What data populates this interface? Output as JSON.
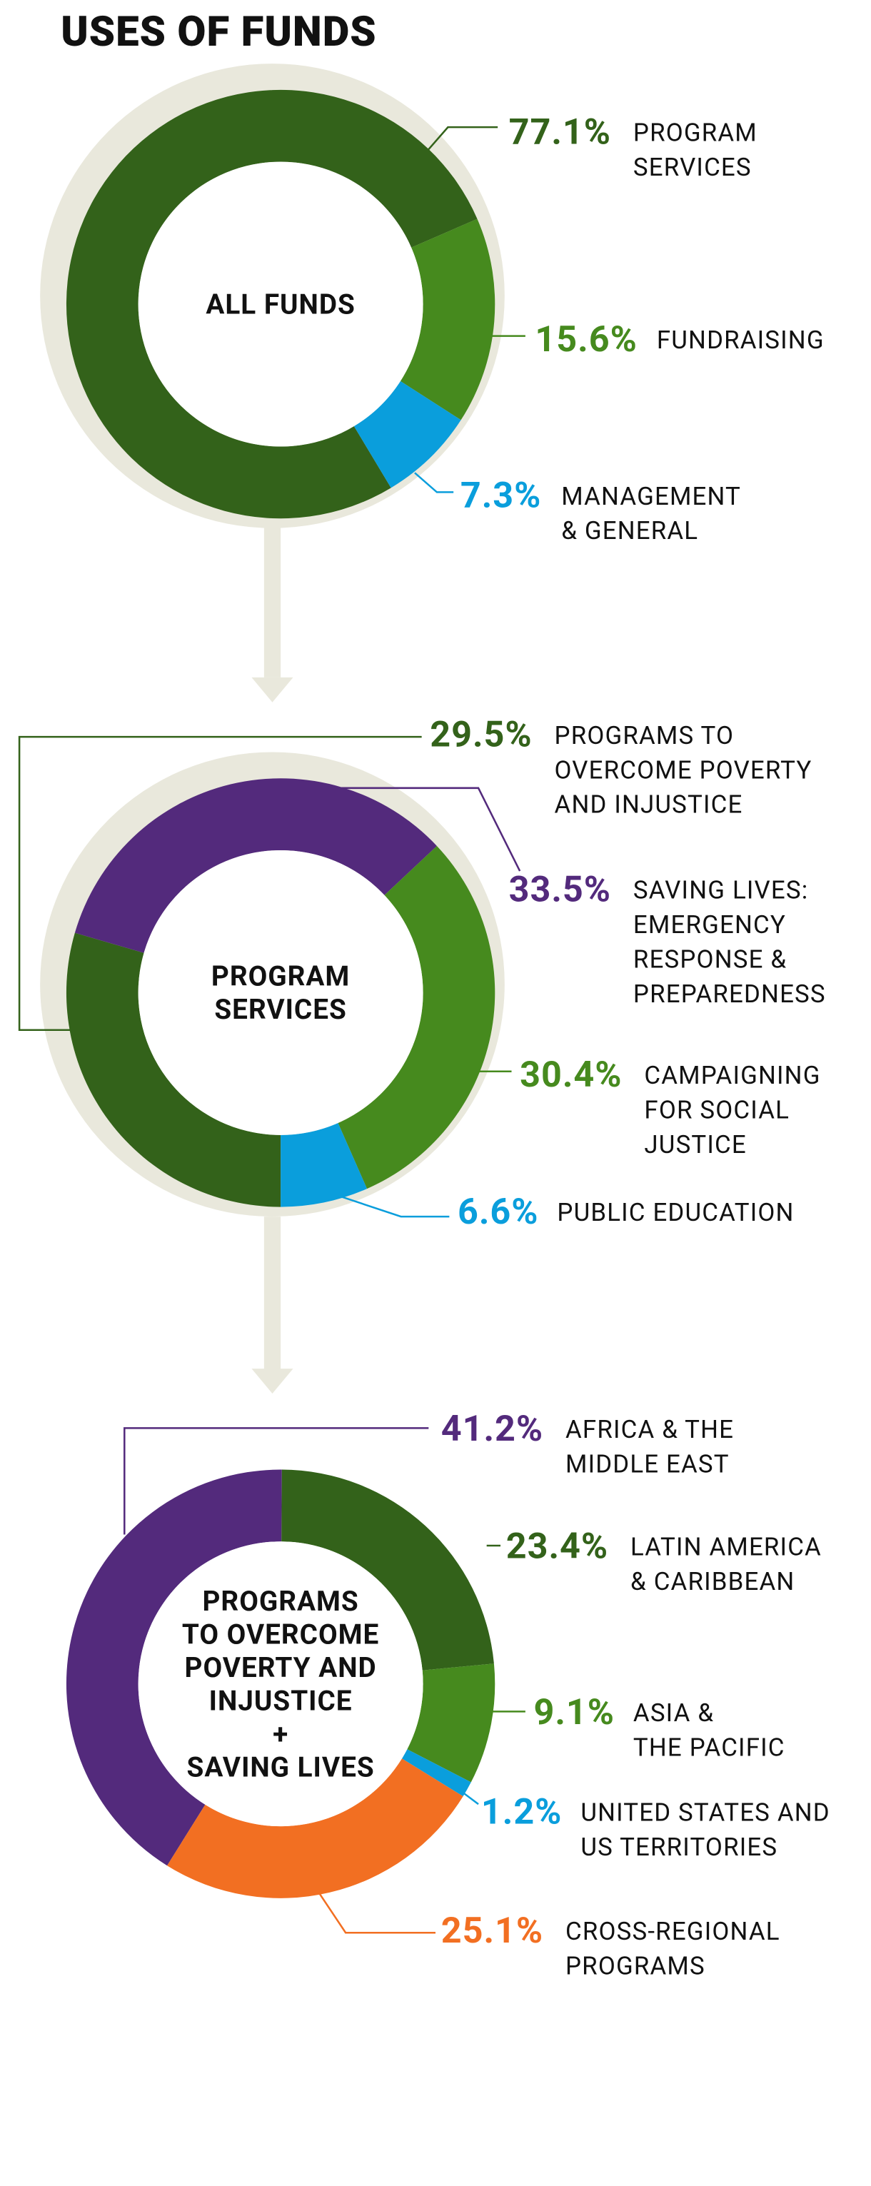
{
  "title": "USES OF FUNDS",
  "chart_data": [
    {
      "type": "donut",
      "title": "ALL FUNDS",
      "categories": [
        "PROGRAM\nSERVICES",
        "FUNDRAISING",
        "MANAGEMENT\n& GENERAL"
      ],
      "values": [
        77.1,
        15.6,
        7.3
      ],
      "value_labels": [
        "77.1%",
        "15.6%",
        "7.3%"
      ],
      "colors": [
        "#33621a",
        "#468a1e",
        "#0a9edc"
      ]
    },
    {
      "type": "donut",
      "title": "PROGRAM\nSERVICES",
      "categories": [
        "PROGRAMS TO\nOVERCOME POVERTY\nAND INJUSTICE",
        "SAVING LIVES:\nEMERGENCY\nRESPONSE &\nPREPAREDNESS",
        "CAMPAIGNING\nFOR SOCIAL\nJUSTICE",
        "PUBLIC EDUCATION"
      ],
      "values": [
        29.5,
        33.5,
        30.4,
        6.6
      ],
      "value_labels": [
        "29.5%",
        "33.5%",
        "30.4%",
        "6.6%"
      ],
      "colors": [
        "#33621a",
        "#532a7c",
        "#468a1e",
        "#0a9edc"
      ]
    },
    {
      "type": "donut",
      "title": "PROGRAMS\nTO OVERCOME\nPOVERTY AND\nINJUSTICE\n+\nSAVING LIVES",
      "categories": [
        "AFRICA & THE\nMIDDLE EAST",
        "LATIN AMERICA\n& CARIBBEAN",
        "ASIA &\nTHE PACIFIC",
        "UNITED STATES AND\nUS TERRITORIES",
        "CROSS-REGIONAL\nPROGRAMS"
      ],
      "values": [
        41.2,
        23.4,
        9.1,
        1.2,
        25.1
      ],
      "value_labels": [
        "41.2%",
        "23.4%",
        "9.1%",
        "1.2%",
        "25.1%"
      ],
      "colors": [
        "#532a7c",
        "#33621a",
        "#468a1e",
        "#0a9edc",
        "#f26f22"
      ]
    }
  ]
}
